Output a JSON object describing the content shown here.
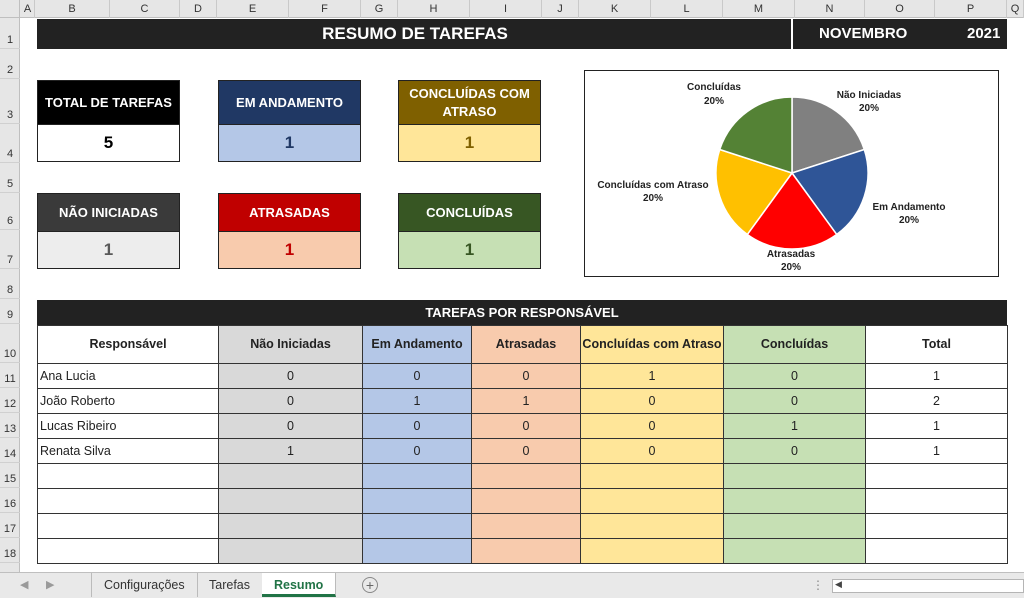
{
  "column_headers": [
    "A",
    "B",
    "C",
    "D",
    "E",
    "F",
    "G",
    "H",
    "I",
    "J",
    "K",
    "L",
    "M",
    "N",
    "O",
    "P",
    "Q"
  ],
  "row_headers": [
    "1",
    "2",
    "3",
    "4",
    "5",
    "6",
    "7",
    "8",
    "9",
    "10",
    "11",
    "12",
    "13",
    "14",
    "15",
    "16",
    "17",
    "18"
  ],
  "title": {
    "text": "RESUMO DE TAREFAS",
    "month": "NOVEMBRO",
    "year": "2021"
  },
  "cards": {
    "total": {
      "label": "TOTAL DE TAREFAS",
      "value": "5"
    },
    "andamento": {
      "label": "EM ANDAMENTO",
      "value": "1"
    },
    "atraso": {
      "label": "CONCLUÍDAS COM ATRASO",
      "value": "1"
    },
    "nao_iniciadas": {
      "label": "NÃO INICIADAS",
      "value": "1"
    },
    "atrasadas": {
      "label": "ATRASADAS",
      "value": "1"
    },
    "concluidas": {
      "label": "CONCLUÍDAS",
      "value": "1"
    }
  },
  "chart_data": {
    "type": "pie",
    "slices": [
      {
        "label": "Não Iniciadas",
        "pct_label": "20%",
        "value": 20,
        "color": "#808080"
      },
      {
        "label": "Em Andamento",
        "pct_label": "20%",
        "value": 20,
        "color": "#2f5597"
      },
      {
        "label": "Atrasadas",
        "pct_label": "20%",
        "value": 20,
        "color": "#ff0000"
      },
      {
        "label": "Concluídas com Atraso",
        "pct_label": "20%",
        "value": 20,
        "color": "#ffc000"
      },
      {
        "label": "Concluídas",
        "pct_label": "20%",
        "value": 20,
        "color": "#548235"
      }
    ]
  },
  "table": {
    "title": "TAREFAS POR RESPONSÁVEL",
    "headers": [
      "Responsável",
      "Não Iniciadas",
      "Em Andamento",
      "Atrasadas",
      "Concluídas com Atraso",
      "Concluídas",
      "Total"
    ],
    "rows": [
      [
        "Ana Lucia",
        "0",
        "0",
        "0",
        "1",
        "0",
        "1"
      ],
      [
        "João Roberto",
        "0",
        "1",
        "1",
        "0",
        "0",
        "2"
      ],
      [
        "Lucas Ribeiro",
        "0",
        "0",
        "0",
        "0",
        "1",
        "1"
      ],
      [
        "Renata Silva",
        "1",
        "0",
        "0",
        "0",
        "0",
        "1"
      ],
      [
        "",
        "",
        "",
        "",
        "",
        "",
        ""
      ],
      [
        "",
        "",
        "",
        "",
        "",
        "",
        ""
      ],
      [
        "",
        "",
        "",
        "",
        "",
        "",
        ""
      ],
      [
        "",
        "",
        "",
        "",
        "",
        "",
        ""
      ]
    ]
  },
  "sheet_tabs": [
    "Configurações",
    "Tarefas",
    "Resumo"
  ],
  "active_tab": "Resumo",
  "colors": {
    "total_header": "#000000",
    "andamento_header": "#203864",
    "andamento_fill": "#b4c7e7",
    "atraso_header": "#7f6000",
    "atraso_fill": "#ffe699",
    "nao_header": "#3a3a3a",
    "nao_fill": "#ededed",
    "atrasadas_header": "#c00000",
    "atrasadas_fill": "#f8cbad",
    "concluidas_header": "#375623",
    "concluidas_fill": "#c6e0b4",
    "gray_fill": "#d9d9d9",
    "accent_excel": "#217346"
  },
  "icons": {
    "prev_sheet": "triangle-left-icon",
    "next_sheet": "triangle-right-icon",
    "add_sheet": "plus-circle-icon",
    "more": "ellipsis-icon",
    "scroll_left": "triangle-left-icon"
  }
}
